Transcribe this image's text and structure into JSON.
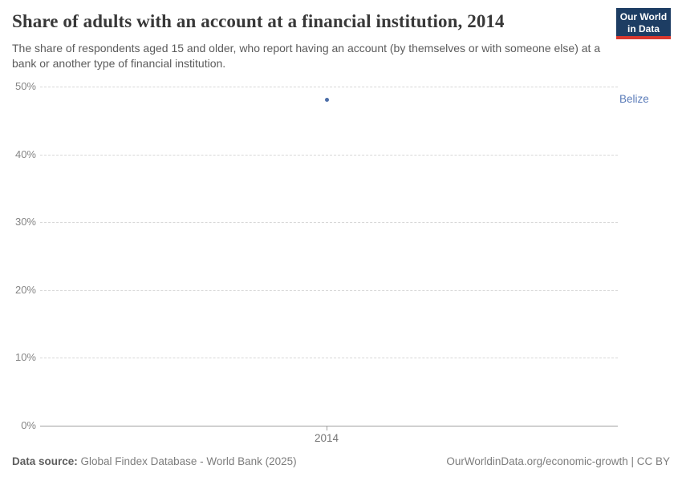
{
  "header": {
    "title": "Share of adults with an account at a financial institution, 2014",
    "subtitle": "The share of respondents aged 15 and older, who report having an account (by themselves or with someone else) at a bank or another type of financial institution.",
    "logo_line1": "Our World",
    "logo_line2": "in Data",
    "logo_bg_color": "#1d3d63",
    "logo_accent_color": "#d9382e"
  },
  "footer": {
    "datasource_label": "Data source:",
    "datasource_value": " Global Findex Database - World Bank (2025)",
    "attribution": "OurWorldinData.org/economic-growth | CC BY"
  },
  "chart_data": {
    "type": "scatter",
    "title": "Share of adults with an account at a financial institution, 2014",
    "xlabel": "",
    "ylabel": "",
    "x": [
      2014
    ],
    "x_tick_labels": [
      "2014"
    ],
    "series": [
      {
        "name": "Belize",
        "x": 2014,
        "value": 48.1,
        "point_color": "#4c6ea8",
        "label_color": "#5b7cb9"
      }
    ],
    "ylim": [
      0,
      50
    ],
    "y_ticks": [
      {
        "value": 0,
        "label": "0%"
      },
      {
        "value": 10,
        "label": "10%"
      },
      {
        "value": 20,
        "label": "20%"
      },
      {
        "value": 30,
        "label": "30%"
      },
      {
        "value": 40,
        "label": "40%"
      },
      {
        "value": 50,
        "label": "50%"
      }
    ],
    "grid": "dashed horizontal gridlines, solid baseline at 0%",
    "legend_position": "right edge entity label"
  }
}
